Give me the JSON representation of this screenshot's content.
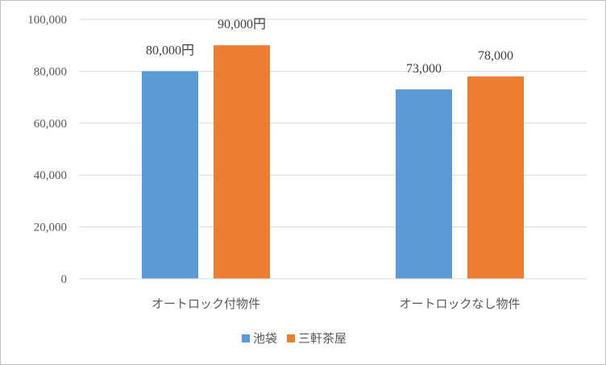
{
  "chart_data": {
    "type": "bar",
    "categories": [
      "オートロック付物件",
      "オートロックなし物件"
    ],
    "series": [
      {
        "name": "池袋",
        "values": [
          80000,
          73000
        ],
        "labels": [
          "80,000円",
          "73,000"
        ],
        "color": "#5b9bd5"
      },
      {
        "name": "三軒茶屋",
        "values": [
          90000,
          78000
        ],
        "labels": [
          "90,000円",
          "78,000"
        ],
        "color": "#ed7d31"
      }
    ],
    "yticks": [
      "0",
      "20,000",
      "40,000",
      "60,000",
      "80,000",
      "100,000"
    ],
    "ylim": [
      0,
      100000
    ],
    "grid": true,
    "legend": "bottom",
    "title": "",
    "xlabel": "",
    "ylabel": ""
  }
}
